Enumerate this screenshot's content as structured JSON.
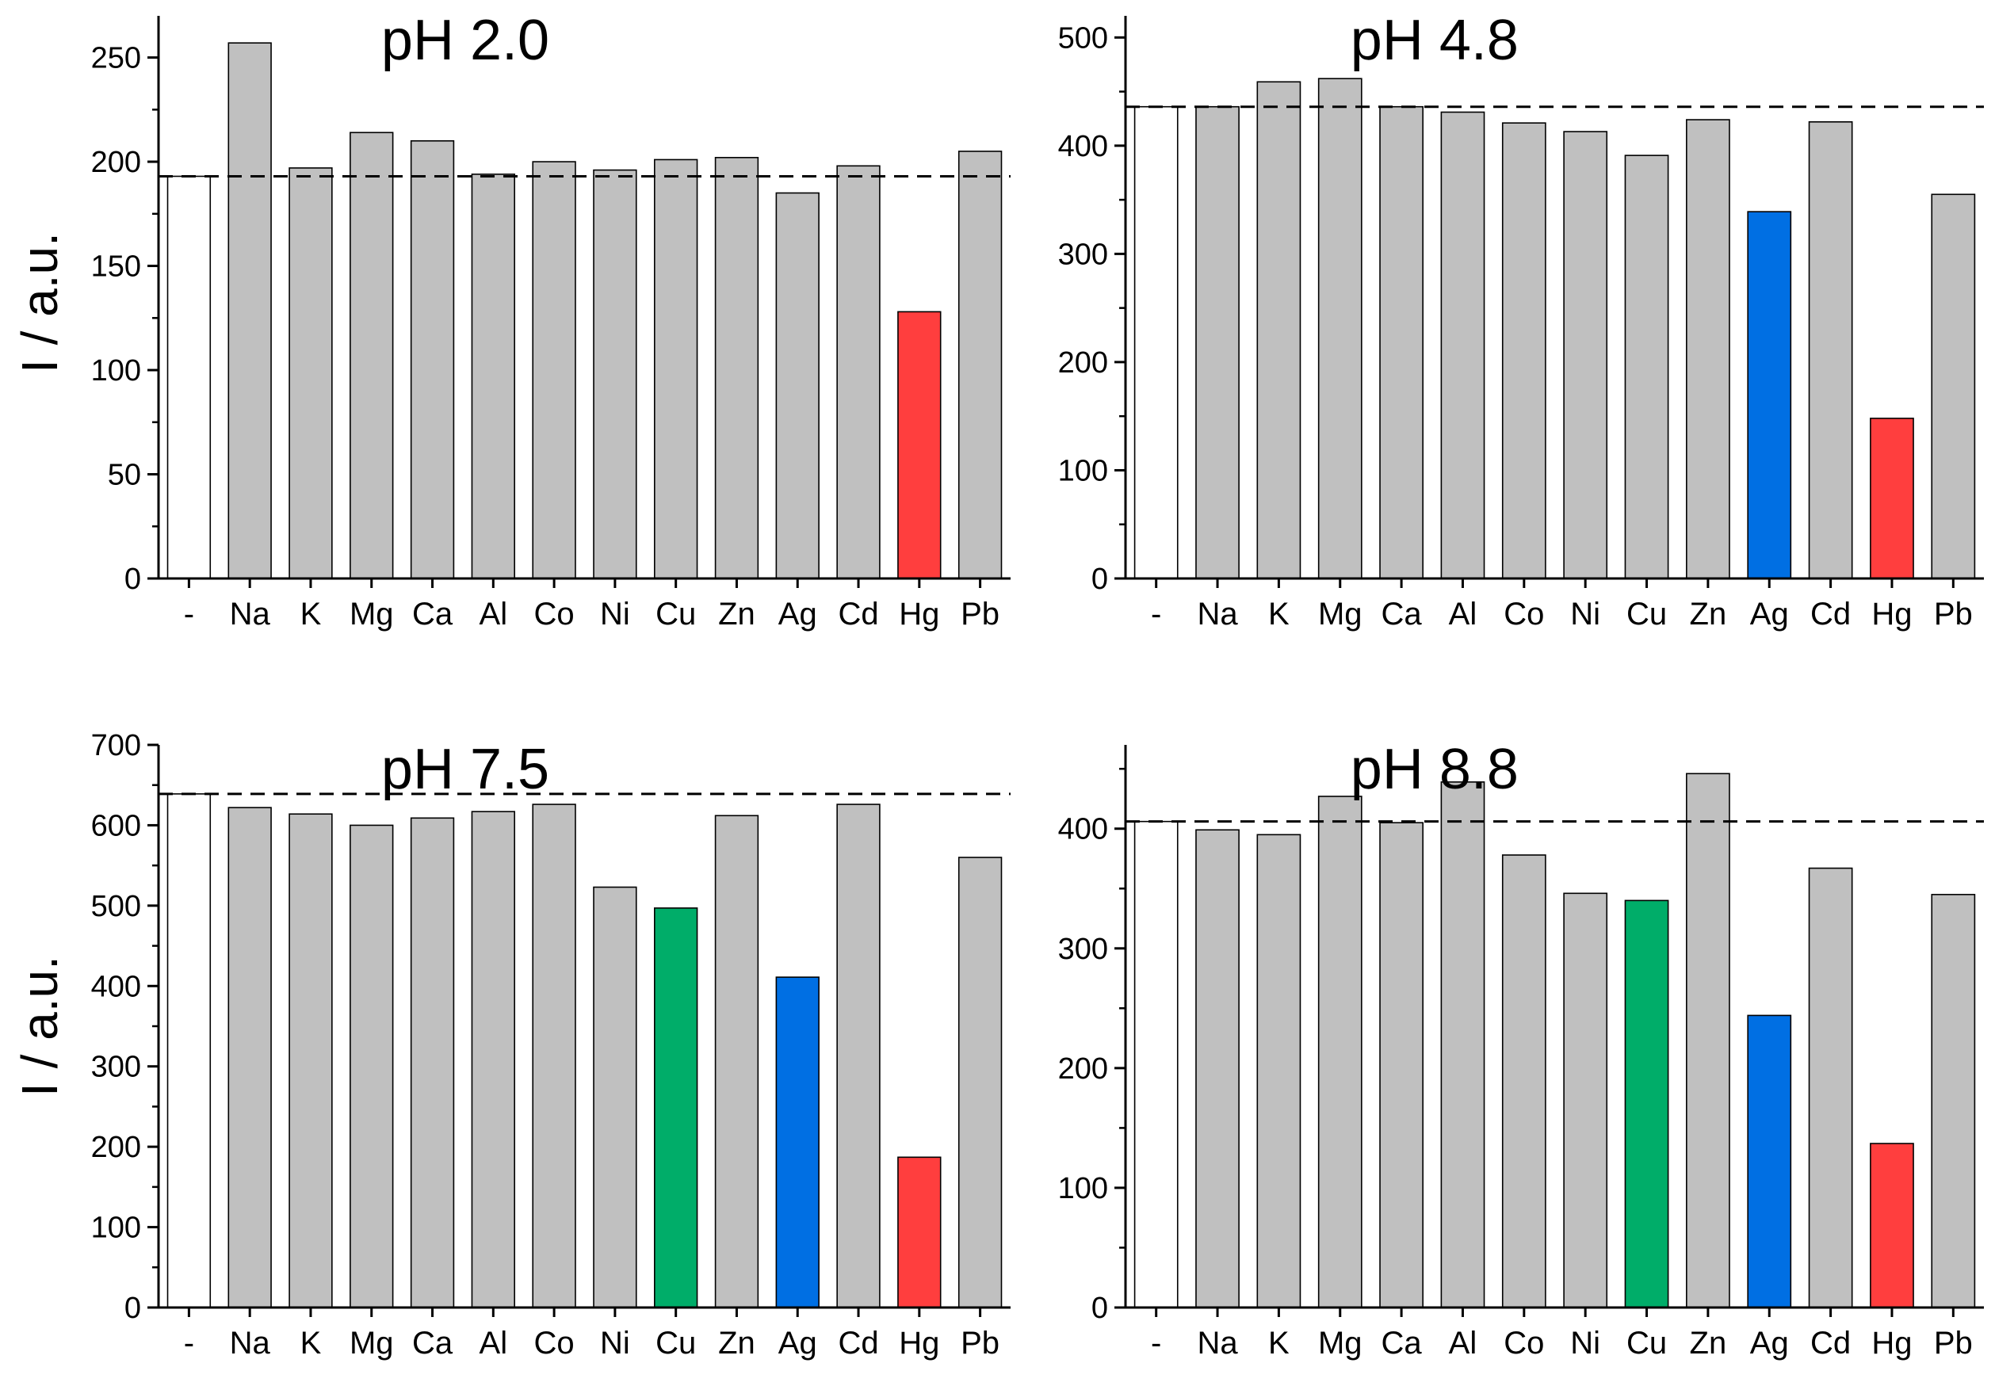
{
  "figure": {
    "ylabel_left_top": "I / a.u.",
    "ylabel_left_bottom": "I / a.u."
  },
  "colors": {
    "blank": "#ffffff",
    "default": "#c0c0c0",
    "Cu": "#00ad69",
    "Ag": "#006fe3",
    "Hg": "#ff3e3e",
    "outline": "#000000"
  },
  "chart_data": [
    {
      "type": "bar",
      "title": "pH 2.0",
      "ylabel": "I / a.u.",
      "xlabel": "",
      "categories": [
        "-",
        "Na",
        "K",
        "Mg",
        "Ca",
        "Al",
        "Co",
        "Ni",
        "Cu",
        "Zn",
        "Ag",
        "Cd",
        "Hg",
        "Pb"
      ],
      "values": [
        193,
        257,
        197,
        214,
        210,
        194,
        200,
        196,
        201,
        202,
        185,
        198,
        128,
        205
      ],
      "ylim": [
        0,
        270
      ],
      "yticks": [
        0,
        50,
        100,
        150,
        200,
        250
      ],
      "reference_line": 193,
      "highlight": {
        "Hg": "Hg"
      }
    },
    {
      "type": "bar",
      "title": "pH 4.8",
      "ylabel": "",
      "xlabel": "",
      "categories": [
        "-",
        "Na",
        "K",
        "Mg",
        "Ca",
        "Al",
        "Co",
        "Ni",
        "Cu",
        "Zn",
        "Ag",
        "Cd",
        "Hg",
        "Pb"
      ],
      "values": [
        436,
        436,
        459,
        462,
        436,
        431,
        421,
        413,
        391,
        424,
        339,
        422,
        148,
        355
      ],
      "ylim": [
        0,
        520
      ],
      "yticks": [
        0,
        100,
        200,
        300,
        400,
        500
      ],
      "reference_line": 436,
      "highlight": {
        "Ag": "Ag",
        "Hg": "Hg"
      }
    },
    {
      "type": "bar",
      "title": "pH 7.5",
      "ylabel": "I / a.u.",
      "xlabel": "",
      "categories": [
        "-",
        "Na",
        "K",
        "Mg",
        "Ca",
        "Al",
        "Co",
        "Ni",
        "Cu",
        "Zn",
        "Ag",
        "Cd",
        "Hg",
        "Pb"
      ],
      "values": [
        639,
        622,
        614,
        600,
        609,
        617,
        626,
        523,
        497,
        612,
        411,
        626,
        187,
        560
      ],
      "ylim": [
        0,
        700
      ],
      "yticks": [
        0,
        100,
        200,
        300,
        400,
        500,
        600,
        700
      ],
      "reference_line": 639,
      "highlight": {
        "Cu": "Cu",
        "Ag": "Ag",
        "Hg": "Hg"
      }
    },
    {
      "type": "bar",
      "title": "pH 8.8",
      "ylabel": "",
      "xlabel": "",
      "categories": [
        "-",
        "Na",
        "K",
        "Mg",
        "Ca",
        "Al",
        "Co",
        "Ni",
        "Cu",
        "Zn",
        "Ag",
        "Cd",
        "Hg",
        "Pb"
      ],
      "values": [
        406,
        399,
        395,
        427,
        405,
        439,
        378,
        346,
        340,
        446,
        244,
        367,
        137,
        345
      ],
      "ylim": [
        0,
        470
      ],
      "yticks": [
        0,
        100,
        200,
        300,
        400
      ],
      "reference_line": 406,
      "highlight": {
        "Cu": "Cu",
        "Ag": "Ag",
        "Hg": "Hg"
      }
    }
  ]
}
